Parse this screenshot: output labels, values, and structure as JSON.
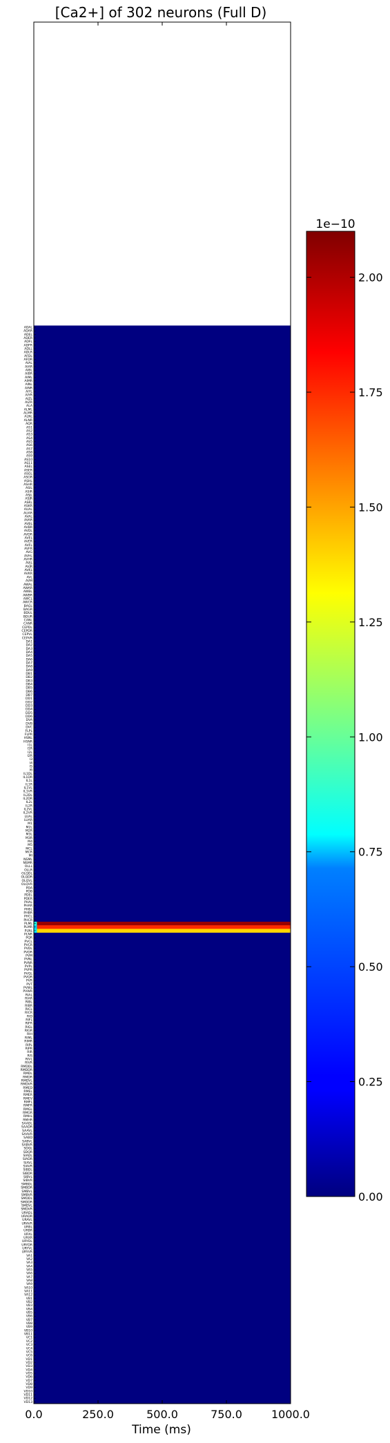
{
  "chart_data": {
    "type": "heatmap",
    "title": "[Ca2+] of 302 neurons (Full D)",
    "xlabel": "Time (ms)",
    "ylabel": "",
    "xlim": [
      0,
      1000
    ],
    "x_ticks": [
      "0.0",
      "250.0",
      "500.0",
      "750.0",
      "1000.0"
    ],
    "neuron_count": 302,
    "neurons": [
      "ADAL",
      "ADAR",
      "ADEL",
      "ADER",
      "ADFL",
      "ADFR",
      "ADLL",
      "ADLR",
      "AFDL",
      "AFDR",
      "AIAL",
      "AIAR",
      "AIBL",
      "AIBR",
      "AIML",
      "AIMR",
      "AINL",
      "AINR",
      "AIYL",
      "AIYR",
      "AIZL",
      "AIZR",
      "ALA",
      "ALML",
      "ALMR",
      "ALNL",
      "ALNR",
      "AQR",
      "AS1",
      "AS2",
      "AS3",
      "AS4",
      "AS5",
      "AS6",
      "AS7",
      "AS8",
      "AS9",
      "AS10",
      "AS11",
      "ASEL",
      "ASER",
      "ASGL",
      "ASGR",
      "ASHL",
      "ASHR",
      "ASIL",
      "ASIR",
      "ASJL",
      "ASJR",
      "ASKL",
      "ASKR",
      "AUAL",
      "AUAR",
      "AVAL",
      "AVAR",
      "AVBL",
      "AVBR",
      "AVDL",
      "AVDR",
      "AVEL",
      "AVER",
      "AVFL",
      "AVFR",
      "AVG",
      "AVHL",
      "AVHR",
      "AVJL",
      "AVJR",
      "AVKL",
      "AVKR",
      "AVL",
      "AVM",
      "AWAL",
      "AWAR",
      "AWBL",
      "AWBR",
      "AWCL",
      "AWCR",
      "BAGL",
      "BAGR",
      "BDUL",
      "BDUR",
      "CANL",
      "CANR",
      "CEPDL",
      "CEPDR",
      "CEPVL",
      "CEPVR",
      "DA1",
      "DA2",
      "DA3",
      "DA4",
      "DA5",
      "DA6",
      "DA7",
      "DA8",
      "DA9",
      "DB1",
      "DB2",
      "DB3",
      "DB4",
      "DB5",
      "DB6",
      "DB7",
      "DD1",
      "DD2",
      "DD3",
      "DD4",
      "DD5",
      "DD6",
      "DVA",
      "DVB",
      "DVC",
      "FLPL",
      "FLPR",
      "HSNL",
      "HSNR",
      "I1L",
      "I1R",
      "I2L",
      "I2R",
      "I3",
      "I4",
      "I5",
      "I6",
      "IL1DL",
      "IL1DR",
      "IL1L",
      "IL1R",
      "IL1VL",
      "IL1VR",
      "IL2DL",
      "IL2DR",
      "IL2L",
      "IL2R",
      "IL2VL",
      "IL2VR",
      "LUAL",
      "LUAR",
      "M1",
      "M2L",
      "M2R",
      "M3L",
      "M3R",
      "M4",
      "M5",
      "MCL",
      "MCR",
      "MI",
      "NSML",
      "NSMR",
      "OLLL",
      "OLLR",
      "OLQDL",
      "OLQDR",
      "OLQVL",
      "OLQVR",
      "PDA",
      "PDB",
      "PDEL",
      "PDER",
      "PHAL",
      "PHAR",
      "PHBL",
      "PHBR",
      "PHCL",
      "PHCR",
      "PLML",
      "PLMR",
      "PLNL",
      "PLNR",
      "PQR",
      "PVCL",
      "PVCR",
      "PVDL",
      "PVDR",
      "PVM",
      "PVNL",
      "PVNR",
      "PVPL",
      "PVPR",
      "PVQL",
      "PVQR",
      "PVR",
      "PVT",
      "PVWL",
      "PVWR",
      "RIAL",
      "RIAR",
      "RIBL",
      "RIBR",
      "RICL",
      "RICR",
      "RID",
      "RIFL",
      "RIFR",
      "RIGL",
      "RIGR",
      "RIH",
      "RIML",
      "RIMR",
      "RIPL",
      "RIPR",
      "RIR",
      "RIS",
      "RIVL",
      "RIVR",
      "RMDDL",
      "RMDDR",
      "RMDL",
      "RMDR",
      "RMDVL",
      "RMDVR",
      "RMED",
      "RMEL",
      "RMER",
      "RMEV",
      "RMFL",
      "RMFR",
      "RMGL",
      "RMGR",
      "RMHL",
      "RMHR",
      "SAADL",
      "SAADR",
      "SAAVL",
      "SAAVR",
      "SABD",
      "SABVL",
      "SABVR",
      "SDQL",
      "SDQR",
      "SIADL",
      "SIADR",
      "SIAVL",
      "SIAVR",
      "SIBDL",
      "SIBDR",
      "SIBVL",
      "SIBVR",
      "SMBDL",
      "SMBDR",
      "SMBVL",
      "SMBVR",
      "SMDDL",
      "SMDDR",
      "SMDVL",
      "SMDVR",
      "URADL",
      "URADR",
      "URAVL",
      "URAVR",
      "URBL",
      "URBR",
      "URXL",
      "URXR",
      "URYDL",
      "URYDR",
      "URYVL",
      "URYVR",
      "VA1",
      "VA2",
      "VA3",
      "VA4",
      "VA5",
      "VA6",
      "VA7",
      "VA8",
      "VA9",
      "VA10",
      "VA11",
      "VA12",
      "VB1",
      "VB2",
      "VB3",
      "VB4",
      "VB5",
      "VB6",
      "VB7",
      "VB8",
      "VB9",
      "VB10",
      "VB11",
      "VC1",
      "VC2",
      "VC3",
      "VC4",
      "VC5",
      "VC6",
      "VD1",
      "VD2",
      "VD3",
      "VD4",
      "VD5",
      "VD6",
      "VD7",
      "VD8",
      "VD9",
      "VD10",
      "VD11",
      "VD12",
      "VD13"
    ],
    "colorbar": {
      "colormap": "jet",
      "min": 0.0,
      "max": 2.1,
      "offset_label": "1e−10",
      "ticks": [
        0.0,
        0.25,
        0.5,
        0.75,
        1.0,
        1.25,
        1.5,
        1.75,
        2.0
      ],
      "tick_labels": [
        "0.00",
        "0.25",
        "0.50",
        "0.75",
        "1.00",
        "1.25",
        "1.50",
        "1.75",
        "2.00"
      ]
    },
    "empty_rows_above_data": 85,
    "background_value": 0.0,
    "active_rows": [
      {
        "row": 167,
        "value": 2.05
      },
      {
        "row": 168,
        "value": 1.75
      },
      {
        "row": 169,
        "value": 1.4
      }
    ],
    "active_row_start_profile": [
      0.85,
      0.7,
      0.75
    ]
  }
}
